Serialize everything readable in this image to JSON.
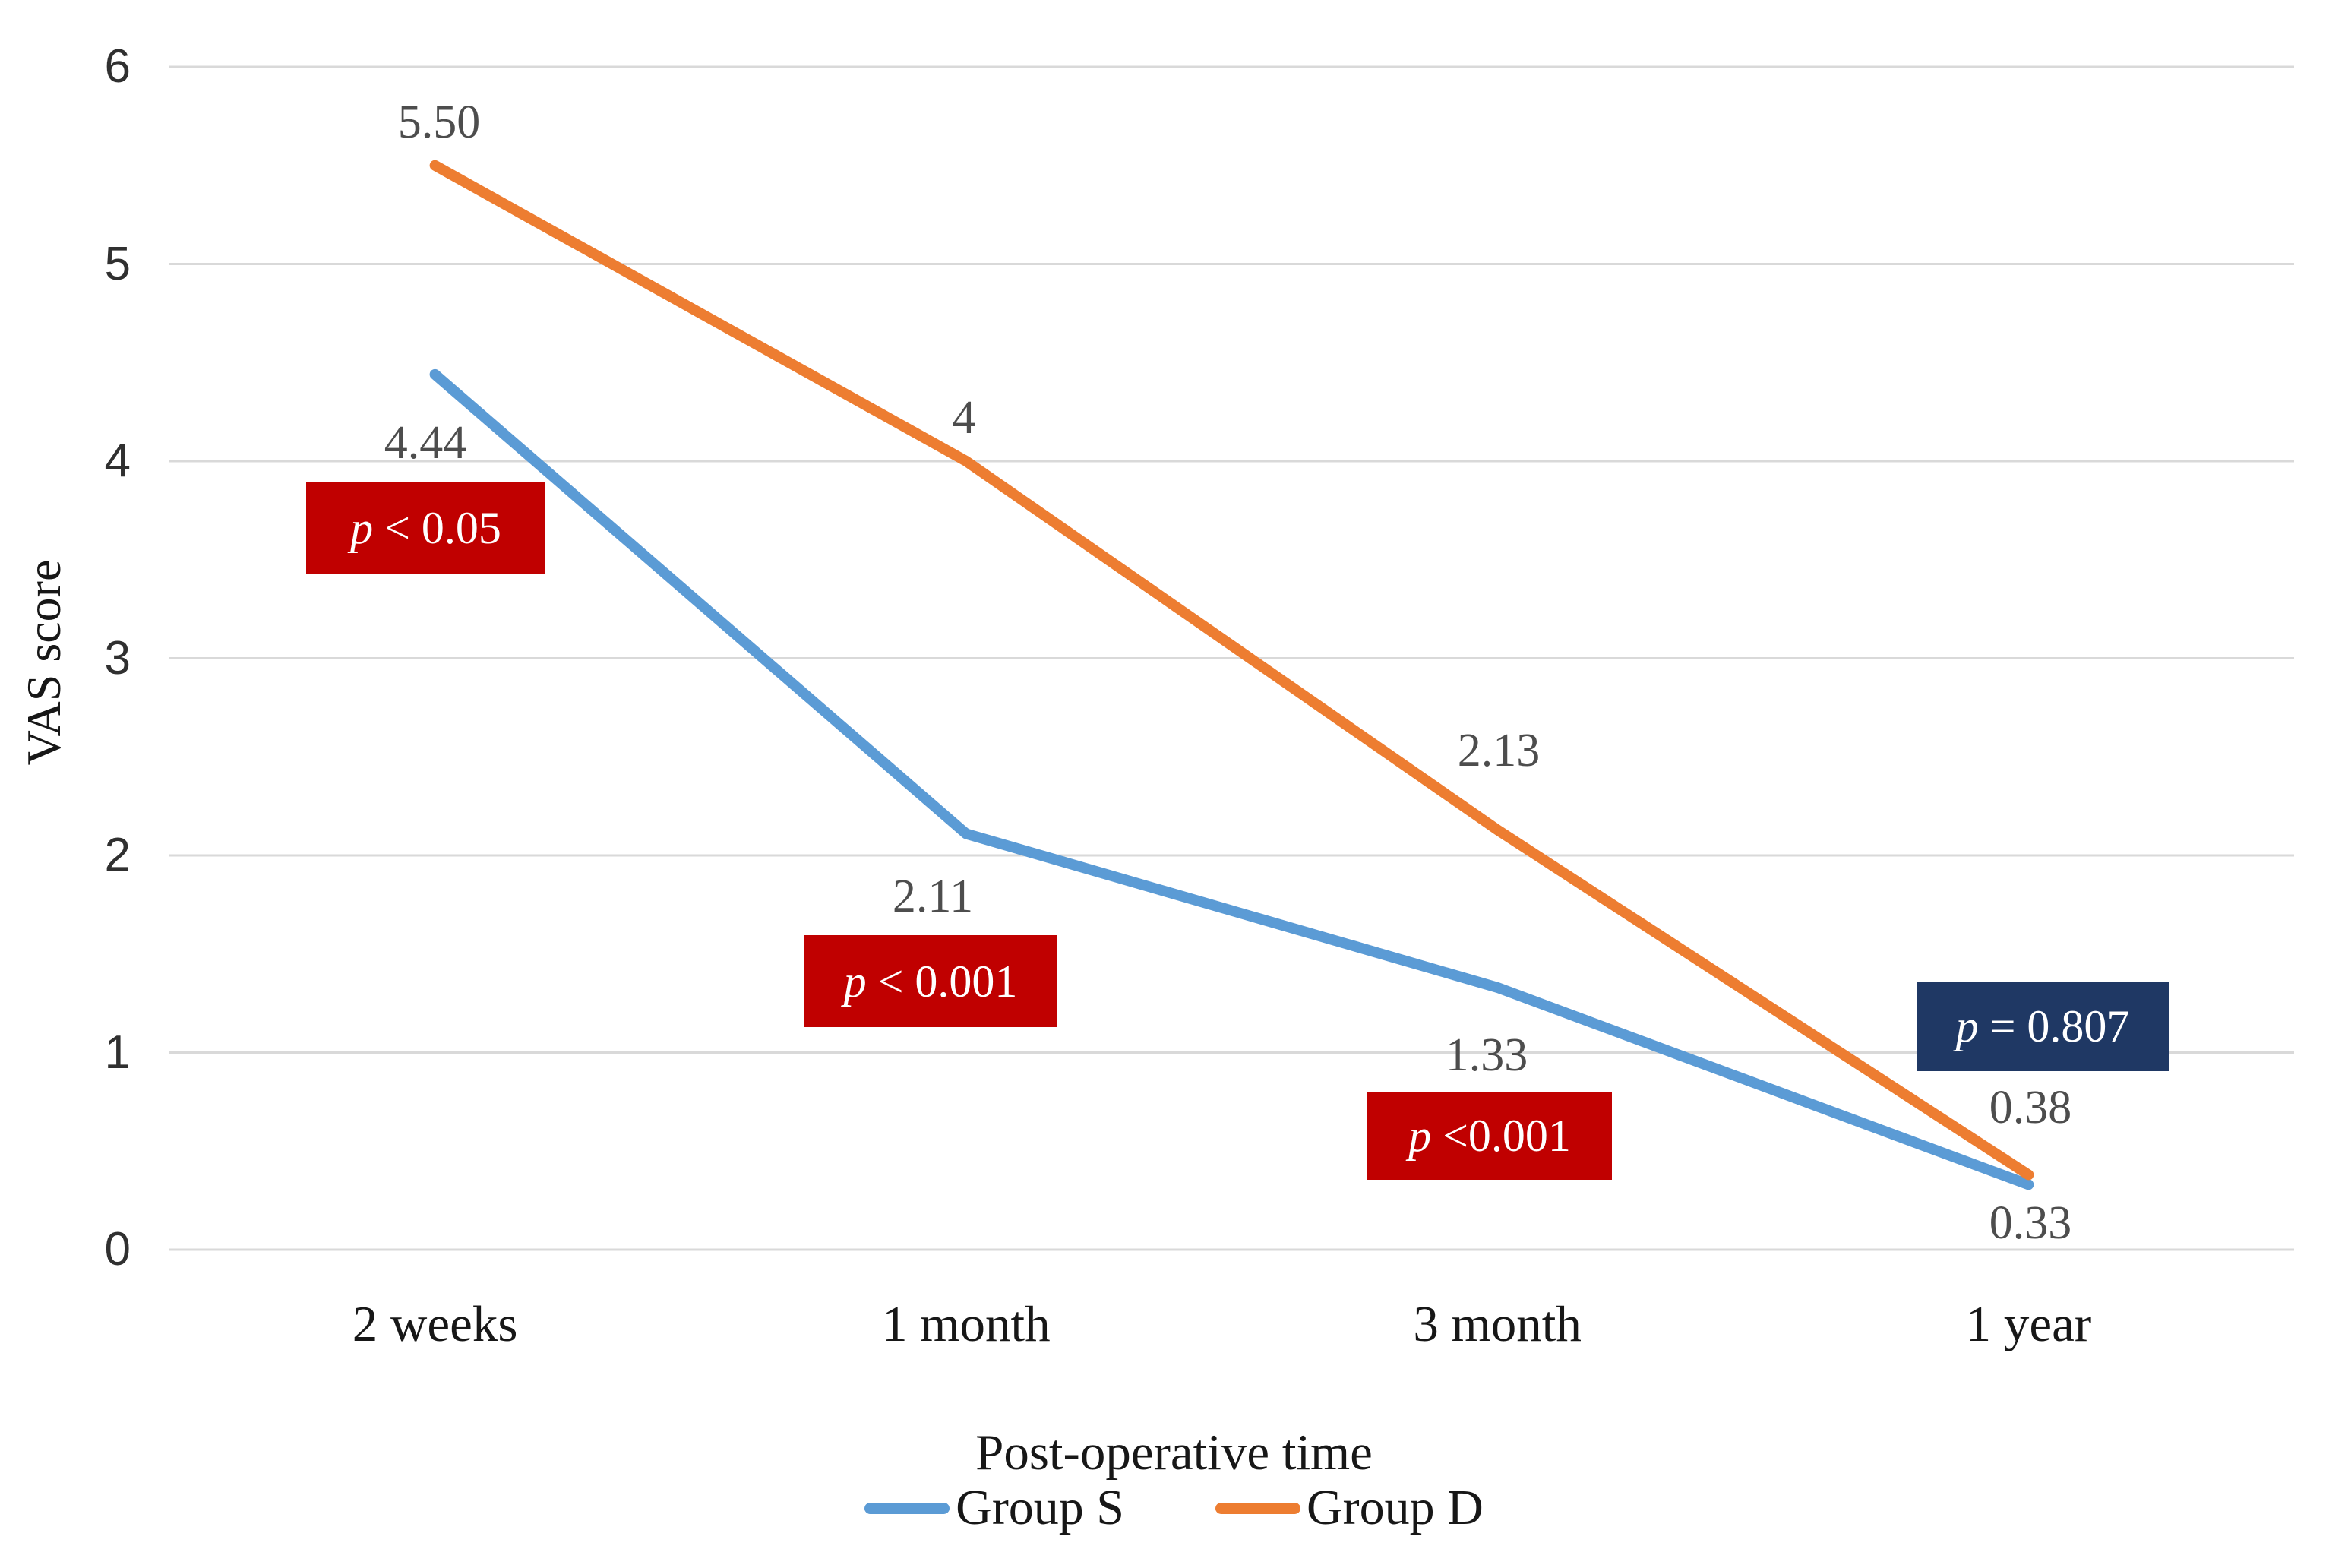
{
  "chart_data": {
    "type": "line",
    "title": "",
    "xlabel": "Post-operative time",
    "ylabel": "VAS score",
    "categories": [
      "2 weeks",
      "1 month",
      "3 month",
      "1 year"
    ],
    "ylim": [
      0,
      6
    ],
    "yticks": [
      "0",
      "1",
      "2",
      "3",
      "4",
      "5",
      "6"
    ],
    "grid": "horizontal",
    "legend_position": "bottom",
    "series": [
      {
        "name": "Group S",
        "color": "#5B9BD5",
        "values": [
          4.44,
          2.11,
          1.33,
          0.33
        ],
        "labels": [
          "4.44",
          "2.11",
          "1.33",
          "0.33"
        ]
      },
      {
        "name": "Group D",
        "color": "#ED7D31",
        "values": [
          5.5,
          4,
          2.13,
          0.38
        ],
        "labels": [
          "5.50",
          "4",
          "2.13",
          "0.38"
        ]
      }
    ],
    "annotations": [
      {
        "text": "p < 0.05",
        "bg": "#C00000",
        "fg": "#FFFFFF"
      },
      {
        "text": "p < 0.001",
        "bg": "#C00000",
        "fg": "#FFFFFF"
      },
      {
        "text": "p <0.001",
        "bg": "#C00000",
        "fg": "#FFFFFF"
      },
      {
        "text": "p = 0.807",
        "bg": "#1F3864",
        "fg": "#FFFFFF"
      }
    ],
    "colors": {
      "gridline": "#D9D9D9",
      "data_label": "#4D4D4D",
      "axis_text": "#303030"
    }
  }
}
